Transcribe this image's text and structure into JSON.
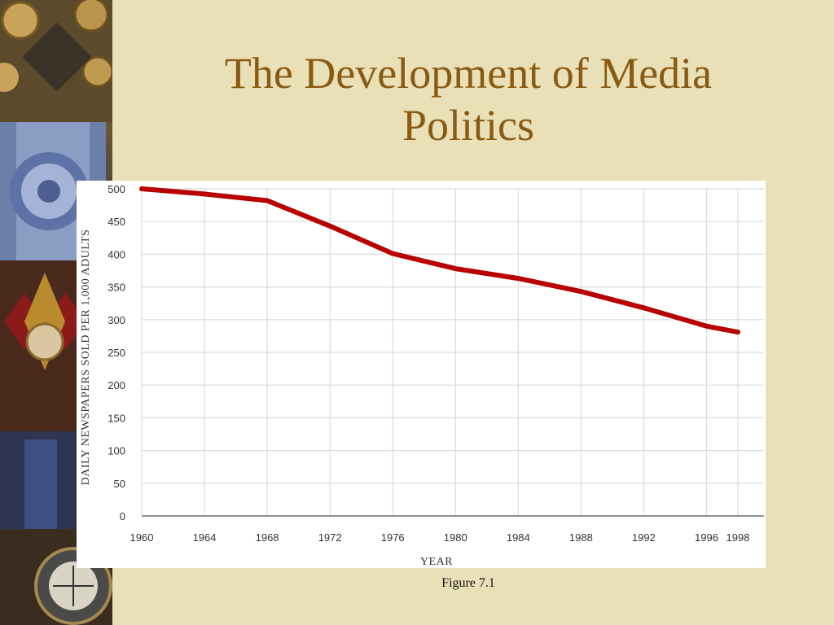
{
  "slide": {
    "title_line1": "The Development of Media",
    "title_line2": "Politics",
    "caption": "Figure 7.1"
  },
  "colors": {
    "background": "#e9e0b7",
    "title": "#8a5a12",
    "line": "#b80000"
  },
  "chart_data": {
    "type": "line",
    "title": "",
    "xlabel": "YEAR",
    "ylabel": "DAILY NEWSPAPERS SOLD PER 1,000 ADULTS",
    "x_ticks": [
      1960,
      1964,
      1968,
      1972,
      1976,
      1980,
      1984,
      1988,
      1992,
      1996,
      1998
    ],
    "y_ticks": [
      0,
      50,
      100,
      150,
      200,
      250,
      300,
      350,
      400,
      450,
      500
    ],
    "xlim": [
      1960,
      1998
    ],
    "ylim": [
      0,
      500
    ],
    "grid": true,
    "x": [
      1960,
      1964,
      1968,
      1972,
      1976,
      1980,
      1984,
      1988,
      1992,
      1996,
      1998
    ],
    "values": [
      500,
      492,
      482,
      443,
      401,
      378,
      363,
      343,
      318,
      290,
      281
    ]
  }
}
